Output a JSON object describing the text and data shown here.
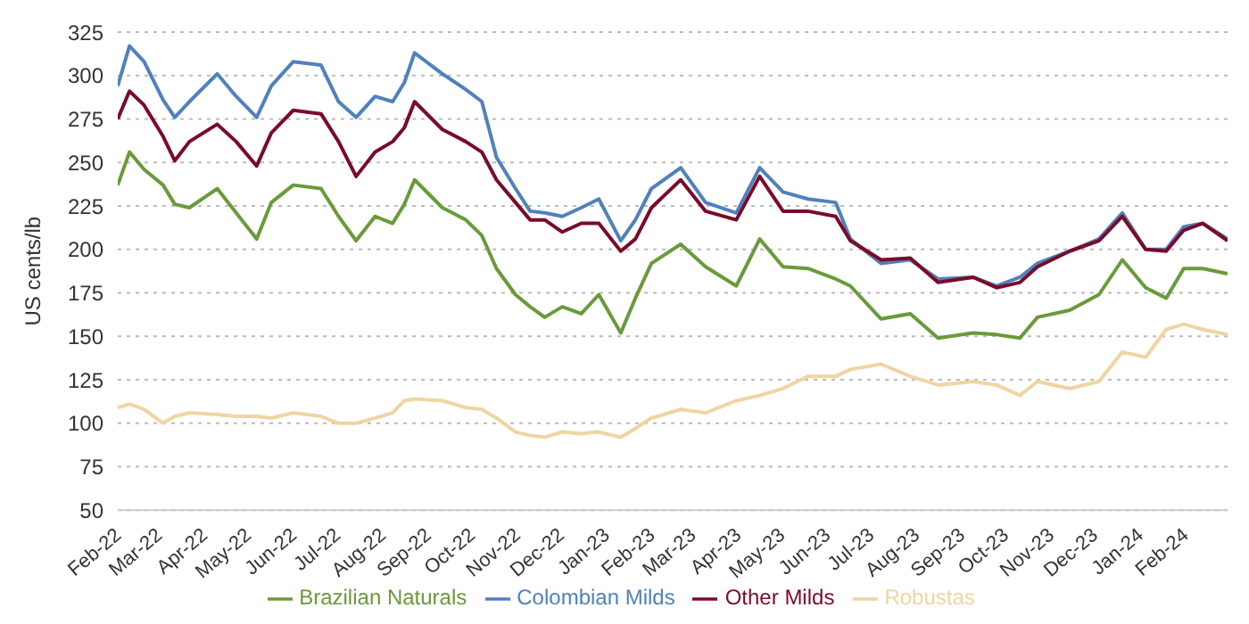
{
  "chart_data": {
    "type": "line",
    "ylabel": "US cents/lb",
    "x": [
      "2022-02-01",
      "2022-02-09",
      "2022-02-19",
      "2022-03-04",
      "2022-03-12",
      "2022-03-22",
      "2022-04-10",
      "2022-04-23",
      "2022-05-07",
      "2022-05-17",
      "2022-06-01",
      "2022-06-20",
      "2022-07-02",
      "2022-07-14",
      "2022-07-27",
      "2022-08-08",
      "2022-08-16",
      "2022-08-23",
      "2022-09-11",
      "2022-09-27",
      "2022-10-08",
      "2022-10-18",
      "2022-10-31",
      "2022-11-10",
      "2022-11-20",
      "2022-12-02",
      "2022-12-15",
      "2022-12-27",
      "2023-01-11",
      "2023-01-21",
      "2023-02-01",
      "2023-02-21",
      "2023-03-10",
      "2023-03-31",
      "2023-04-16",
      "2023-05-02",
      "2023-05-19",
      "2023-06-07",
      "2023-06-17",
      "2023-07-08",
      "2023-07-28",
      "2023-08-16",
      "2023-09-09",
      "2023-09-25",
      "2023-10-11",
      "2023-10-23",
      "2023-11-14",
      "2023-12-04",
      "2023-12-20",
      "2024-01-05",
      "2024-01-19",
      "2024-01-31",
      "2024-02-13",
      "2024-03-01"
    ],
    "series": [
      {
        "name": "Colombian Milds",
        "color": "#4f81bd",
        "values": [
          294,
          317,
          308,
          286,
          276,
          285,
          301,
          288,
          276,
          294,
          308,
          306,
          285,
          276,
          288,
          285,
          296,
          313,
          301,
          292,
          285,
          253,
          235,
          222,
          221,
          219,
          224,
          229,
          205,
          217,
          235,
          247,
          227,
          221,
          247,
          233,
          229,
          227,
          206,
          192,
          194,
          183,
          184,
          179,
          184,
          192,
          199,
          206,
          221,
          200,
          200,
          213,
          215,
          206
        ]
      },
      {
        "name": "Other Milds",
        "color": "#7b0a2a",
        "values": [
          275,
          291,
          283,
          265,
          251,
          262,
          272,
          262,
          248,
          267,
          280,
          278,
          262,
          242,
          256,
          262,
          270,
          285,
          269,
          262,
          256,
          240,
          227,
          217,
          217,
          210,
          215,
          215,
          199,
          206,
          224,
          240,
          222,
          217,
          242,
          222,
          222,
          219,
          205,
          194,
          195,
          181,
          184,
          178,
          181,
          190,
          199,
          205,
          219,
          200,
          199,
          211,
          215,
          205
        ]
      },
      {
        "name": "Brazilian Naturals",
        "color": "#6a9a3a",
        "values": [
          237,
          256,
          246,
          237,
          226,
          224,
          235,
          221,
          206,
          227,
          237,
          235,
          219,
          205,
          219,
          215,
          226,
          240,
          224,
          217,
          208,
          189,
          174,
          167,
          161,
          167,
          163,
          174,
          152,
          172,
          192,
          203,
          190,
          179,
          206,
          190,
          189,
          183,
          179,
          160,
          163,
          149,
          152,
          151,
          149,
          161,
          165,
          174,
          194,
          178,
          172,
          189,
          189,
          186
        ]
      },
      {
        "name": "Robustas",
        "color": "#efd5a2",
        "values": [
          109,
          111,
          108,
          100,
          104,
          106,
          105,
          104,
          104,
          103,
          106,
          104,
          100,
          100,
          103,
          106,
          113,
          114,
          113,
          109,
          108,
          103,
          95,
          93,
          92,
          95,
          94,
          95,
          92,
          97,
          103,
          108,
          106,
          113,
          116,
          120,
          127,
          127,
          131,
          134,
          127,
          122,
          124,
          122,
          116,
          124,
          120,
          124,
          141,
          138,
          154,
          157,
          154,
          151
        ]
      }
    ],
    "xlim": [
      "2022-02-01",
      "2024-03-01"
    ],
    "xticks": [
      {
        "value": "2022-02-01",
        "label": "Feb-22"
      },
      {
        "value": "2022-03-01",
        "label": "Mar-22"
      },
      {
        "value": "2022-04-01",
        "label": "Apr-22"
      },
      {
        "value": "2022-05-01",
        "label": "May-22"
      },
      {
        "value": "2022-06-01",
        "label": "Jun-22"
      },
      {
        "value": "2022-07-01",
        "label": "Jul-22"
      },
      {
        "value": "2022-08-01",
        "label": "Aug-22"
      },
      {
        "value": "2022-09-01",
        "label": "Sep-22"
      },
      {
        "value": "2022-10-01",
        "label": "Oct-22"
      },
      {
        "value": "2022-11-01",
        "label": "Nov-22"
      },
      {
        "value": "2022-12-01",
        "label": "Dec-22"
      },
      {
        "value": "2023-01-01",
        "label": "Jan-23"
      },
      {
        "value": "2023-02-01",
        "label": "Feb-23"
      },
      {
        "value": "2023-03-01",
        "label": "Mar-23"
      },
      {
        "value": "2023-04-01",
        "label": "Apr-23"
      },
      {
        "value": "2023-05-01",
        "label": "May-23"
      },
      {
        "value": "2023-06-01",
        "label": "Jun-23"
      },
      {
        "value": "2023-07-01",
        "label": "Jul-23"
      },
      {
        "value": "2023-08-01",
        "label": "Aug-23"
      },
      {
        "value": "2023-09-01",
        "label": "Sep-23"
      },
      {
        "value": "2023-10-01",
        "label": "Oct-23"
      },
      {
        "value": "2023-11-01",
        "label": "Nov-23"
      },
      {
        "value": "2023-12-01",
        "label": "Dec-23"
      },
      {
        "value": "2024-01-01",
        "label": "Jan-24"
      },
      {
        "value": "2024-02-01",
        "label": "Feb-24"
      }
    ],
    "ylim": [
      50,
      325
    ],
    "yticks": [
      50,
      75,
      100,
      125,
      150,
      175,
      200,
      225,
      250,
      275,
      300,
      325
    ],
    "grid": "y",
    "legend": "bottom",
    "marker": "none",
    "line_style": "solid"
  }
}
